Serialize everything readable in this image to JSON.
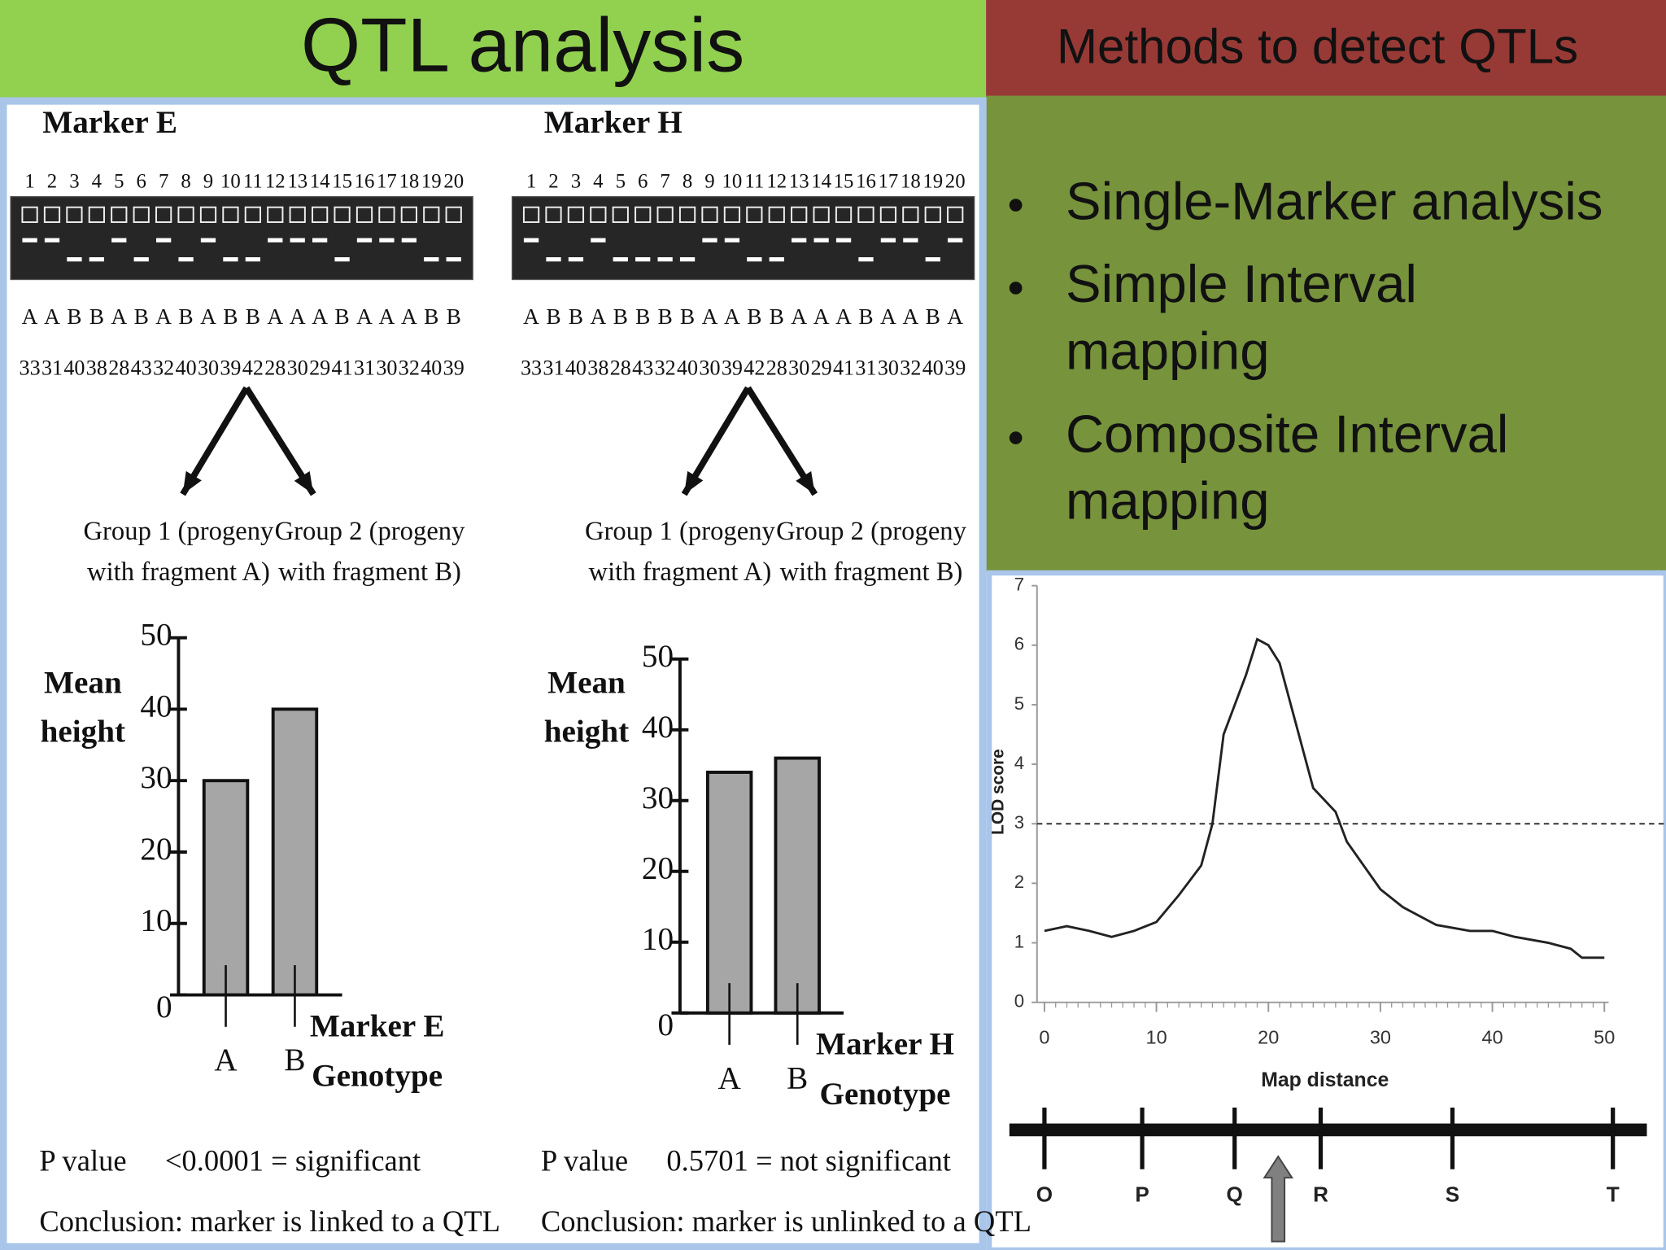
{
  "title": "QTL analysis",
  "side_title": "Methods to detect QTLs",
  "bullets": [
    [
      "Single-Marker analysis"
    ],
    [
      "Simple Interval",
      "mapping"
    ],
    [
      "Composite Interval",
      "mapping"
    ]
  ],
  "markers": [
    {
      "name": "Marker E",
      "lanes": [
        1,
        2,
        3,
        4,
        5,
        6,
        7,
        8,
        9,
        10,
        11,
        12,
        13,
        14,
        15,
        16,
        17,
        18,
        19,
        20
      ],
      "genotypes": [
        "A",
        "A",
        "B",
        "B",
        "A",
        "B",
        "A",
        "B",
        "A",
        "B",
        "B",
        "A",
        "A",
        "A",
        "B",
        "A",
        "A",
        "A",
        "B",
        "B"
      ],
      "heights": [
        33,
        31,
        40,
        38,
        28,
        43,
        32,
        40,
        30,
        39,
        42,
        28,
        30,
        29,
        41,
        31,
        30,
        32,
        40,
        39
      ],
      "groups": [
        [
          "Group 1 (progeny",
          "with fragment A)"
        ],
        [
          "Group 2 (progeny",
          "with fragment B)"
        ]
      ],
      "p_label": "P value",
      "p_value": "<0.0001 = significant",
      "conclusion": "Conclusion: marker is linked to a QTL"
    },
    {
      "name": "Marker H",
      "lanes": [
        1,
        2,
        3,
        4,
        5,
        6,
        7,
        8,
        9,
        10,
        11,
        12,
        13,
        14,
        15,
        16,
        17,
        18,
        19,
        20
      ],
      "genotypes": [
        "A",
        "B",
        "B",
        "A",
        "B",
        "B",
        "B",
        "B",
        "A",
        "A",
        "B",
        "B",
        "A",
        "A",
        "A",
        "B",
        "A",
        "A",
        "B",
        "A"
      ],
      "heights": [
        33,
        31,
        40,
        38,
        28,
        43,
        32,
        40,
        30,
        39,
        42,
        28,
        30,
        29,
        41,
        31,
        30,
        32,
        40,
        39
      ],
      "groups": [
        [
          "Group 1 (progeny",
          "with fragment A)"
        ],
        [
          "Group 2 (progeny",
          "with fragment B)"
        ]
      ],
      "p_label": "P value",
      "p_value": "0.5701 = not significant",
      "conclusion": "Conclusion: marker is unlinked to a QTL"
    }
  ],
  "chart_data": [
    {
      "type": "bar",
      "categories": [
        "A",
        "B"
      ],
      "values": [
        30,
        40
      ],
      "color": "#a6a6a6",
      "ylim": [
        0,
        50
      ],
      "yticks": [
        0,
        10,
        20,
        30,
        40,
        50
      ],
      "ylabel": [
        "Mean",
        "height"
      ],
      "xlabel": [
        "Marker E",
        "Genotype"
      ]
    },
    {
      "type": "bar",
      "categories": [
        "A",
        "B"
      ],
      "values": [
        34,
        36
      ],
      "color": "#a6a6a6",
      "ylim": [
        0,
        50
      ],
      "yticks": [
        0,
        10,
        20,
        30,
        40,
        50
      ],
      "ylabel": [
        "Mean",
        "height"
      ],
      "xlabel": [
        "Marker H",
        "Genotype"
      ]
    },
    {
      "type": "line",
      "color": "#222222",
      "x": [
        0,
        2,
        4,
        6,
        8,
        10,
        12,
        14,
        15,
        16,
        18,
        19,
        20,
        21,
        22,
        24,
        26,
        27,
        30,
        32,
        35,
        38,
        40,
        42,
        45,
        47,
        48,
        50
      ],
      "values": [
        1.2,
        1.28,
        1.2,
        1.1,
        1.2,
        1.35,
        1.8,
        2.3,
        3.0,
        4.5,
        5.5,
        6.1,
        6.0,
        5.7,
        5.0,
        3.6,
        3.2,
        2.7,
        1.9,
        1.6,
        1.3,
        1.2,
        1.2,
        1.1,
        1.0,
        0.9,
        0.75,
        0.75
      ],
      "threshold": 3,
      "xlim": [
        0,
        50
      ],
      "xticks": [
        0,
        10,
        20,
        30,
        40,
        50
      ],
      "ylim": [
        0,
        7
      ],
      "yticks": [
        0,
        1,
        2,
        3,
        4,
        5,
        6,
        7
      ],
      "xlabel": "Map distance",
      "ylabel": "LOD score"
    }
  ],
  "genetic_map": {
    "markers": [
      "O",
      "P",
      "Q",
      "R",
      "S",
      "T"
    ]
  }
}
